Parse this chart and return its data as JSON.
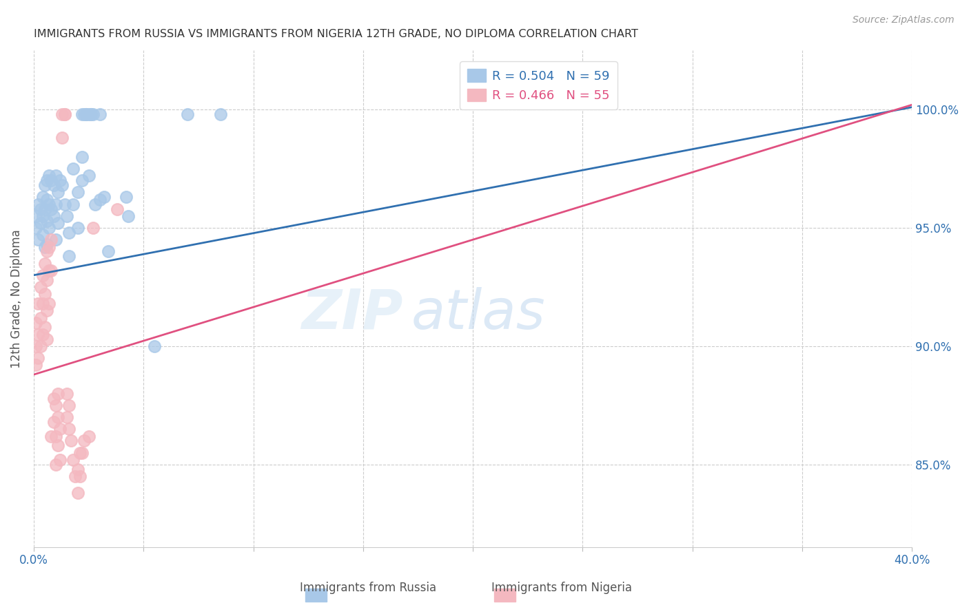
{
  "title": "IMMIGRANTS FROM RUSSIA VS IMMIGRANTS FROM NIGERIA 12TH GRADE, NO DIPLOMA CORRELATION CHART",
  "source": "Source: ZipAtlas.com",
  "ylabel": "12th Grade, No Diploma",
  "yaxis_labels": [
    "100.0%",
    "95.0%",
    "90.0%",
    "85.0%"
  ],
  "yaxis_values": [
    1.0,
    0.95,
    0.9,
    0.85
  ],
  "xaxis_min": 0.0,
  "xaxis_max": 0.4,
  "yaxis_min": 0.815,
  "yaxis_max": 1.025,
  "russia_color": "#a8c8e8",
  "nigeria_color": "#f4b8c0",
  "russia_line_color": "#3070b0",
  "nigeria_line_color": "#e05080",
  "russia_R": 0.504,
  "russia_N": 59,
  "nigeria_R": 0.466,
  "nigeria_N": 55,
  "watermark_zip": "ZIP",
  "watermark_atlas": "atlas",
  "legend_label_russia": "Immigrants from Russia",
  "legend_label_nigeria": "Immigrants from Nigeria",
  "russia_line": [
    [
      0.0,
      0.93
    ],
    [
      0.4,
      1.001
    ]
  ],
  "nigeria_line": [
    [
      0.0,
      0.888
    ],
    [
      0.4,
      1.002
    ]
  ],
  "russia_scatter": [
    [
      0.001,
      0.955
    ],
    [
      0.001,
      0.95
    ],
    [
      0.002,
      0.96
    ],
    [
      0.002,
      0.945
    ],
    [
      0.003,
      0.958
    ],
    [
      0.003,
      0.952
    ],
    [
      0.004,
      0.963
    ],
    [
      0.004,
      0.955
    ],
    [
      0.004,
      0.947
    ],
    [
      0.005,
      0.968
    ],
    [
      0.005,
      0.958
    ],
    [
      0.005,
      0.942
    ],
    [
      0.006,
      0.97
    ],
    [
      0.006,
      0.962
    ],
    [
      0.006,
      0.953
    ],
    [
      0.006,
      0.943
    ],
    [
      0.007,
      0.972
    ],
    [
      0.007,
      0.96
    ],
    [
      0.007,
      0.95
    ],
    [
      0.008,
      0.97
    ],
    [
      0.008,
      0.958
    ],
    [
      0.009,
      0.968
    ],
    [
      0.009,
      0.955
    ],
    [
      0.01,
      0.972
    ],
    [
      0.01,
      0.96
    ],
    [
      0.01,
      0.945
    ],
    [
      0.011,
      0.965
    ],
    [
      0.011,
      0.952
    ],
    [
      0.012,
      0.97
    ],
    [
      0.013,
      0.968
    ],
    [
      0.014,
      0.96
    ],
    [
      0.015,
      0.955
    ],
    [
      0.016,
      0.948
    ],
    [
      0.016,
      0.938
    ],
    [
      0.018,
      0.975
    ],
    [
      0.018,
      0.96
    ],
    [
      0.02,
      0.965
    ],
    [
      0.02,
      0.95
    ],
    [
      0.022,
      0.98
    ],
    [
      0.022,
      0.97
    ],
    [
      0.022,
      0.998
    ],
    [
      0.023,
      0.998
    ],
    [
      0.024,
      0.998
    ],
    [
      0.024,
      0.998
    ],
    [
      0.025,
      0.998
    ],
    [
      0.025,
      0.972
    ],
    [
      0.026,
      0.998
    ],
    [
      0.026,
      0.998
    ],
    [
      0.027,
      0.998
    ],
    [
      0.028,
      0.96
    ],
    [
      0.03,
      0.998
    ],
    [
      0.03,
      0.962
    ],
    [
      0.032,
      0.963
    ],
    [
      0.034,
      0.94
    ],
    [
      0.042,
      0.963
    ],
    [
      0.043,
      0.955
    ],
    [
      0.055,
      0.9
    ],
    [
      0.07,
      0.998
    ],
    [
      0.085,
      0.998
    ]
  ],
  "nigeria_scatter": [
    [
      0.001,
      0.91
    ],
    [
      0.001,
      0.9
    ],
    [
      0.001,
      0.892
    ],
    [
      0.002,
      0.918
    ],
    [
      0.002,
      0.905
    ],
    [
      0.002,
      0.895
    ],
    [
      0.003,
      0.925
    ],
    [
      0.003,
      0.912
    ],
    [
      0.003,
      0.9
    ],
    [
      0.004,
      0.93
    ],
    [
      0.004,
      0.918
    ],
    [
      0.004,
      0.905
    ],
    [
      0.005,
      0.935
    ],
    [
      0.005,
      0.922
    ],
    [
      0.005,
      0.908
    ],
    [
      0.006,
      0.94
    ],
    [
      0.006,
      0.928
    ],
    [
      0.006,
      0.915
    ],
    [
      0.006,
      0.903
    ],
    [
      0.007,
      0.942
    ],
    [
      0.007,
      0.932
    ],
    [
      0.007,
      0.918
    ],
    [
      0.008,
      0.945
    ],
    [
      0.008,
      0.932
    ],
    [
      0.008,
      0.862
    ],
    [
      0.009,
      0.878
    ],
    [
      0.009,
      0.868
    ],
    [
      0.01,
      0.875
    ],
    [
      0.01,
      0.862
    ],
    [
      0.01,
      0.85
    ],
    [
      0.011,
      0.88
    ],
    [
      0.011,
      0.87
    ],
    [
      0.011,
      0.858
    ],
    [
      0.012,
      0.865
    ],
    [
      0.012,
      0.852
    ],
    [
      0.013,
      0.998
    ],
    [
      0.013,
      0.988
    ],
    [
      0.014,
      0.998
    ],
    [
      0.014,
      0.998
    ],
    [
      0.015,
      0.88
    ],
    [
      0.015,
      0.87
    ],
    [
      0.016,
      0.875
    ],
    [
      0.016,
      0.865
    ],
    [
      0.017,
      0.86
    ],
    [
      0.018,
      0.852
    ],
    [
      0.019,
      0.845
    ],
    [
      0.02,
      0.848
    ],
    [
      0.02,
      0.838
    ],
    [
      0.021,
      0.855
    ],
    [
      0.021,
      0.845
    ],
    [
      0.022,
      0.855
    ],
    [
      0.023,
      0.86
    ],
    [
      0.025,
      0.862
    ],
    [
      0.027,
      0.95
    ],
    [
      0.038,
      0.958
    ]
  ]
}
